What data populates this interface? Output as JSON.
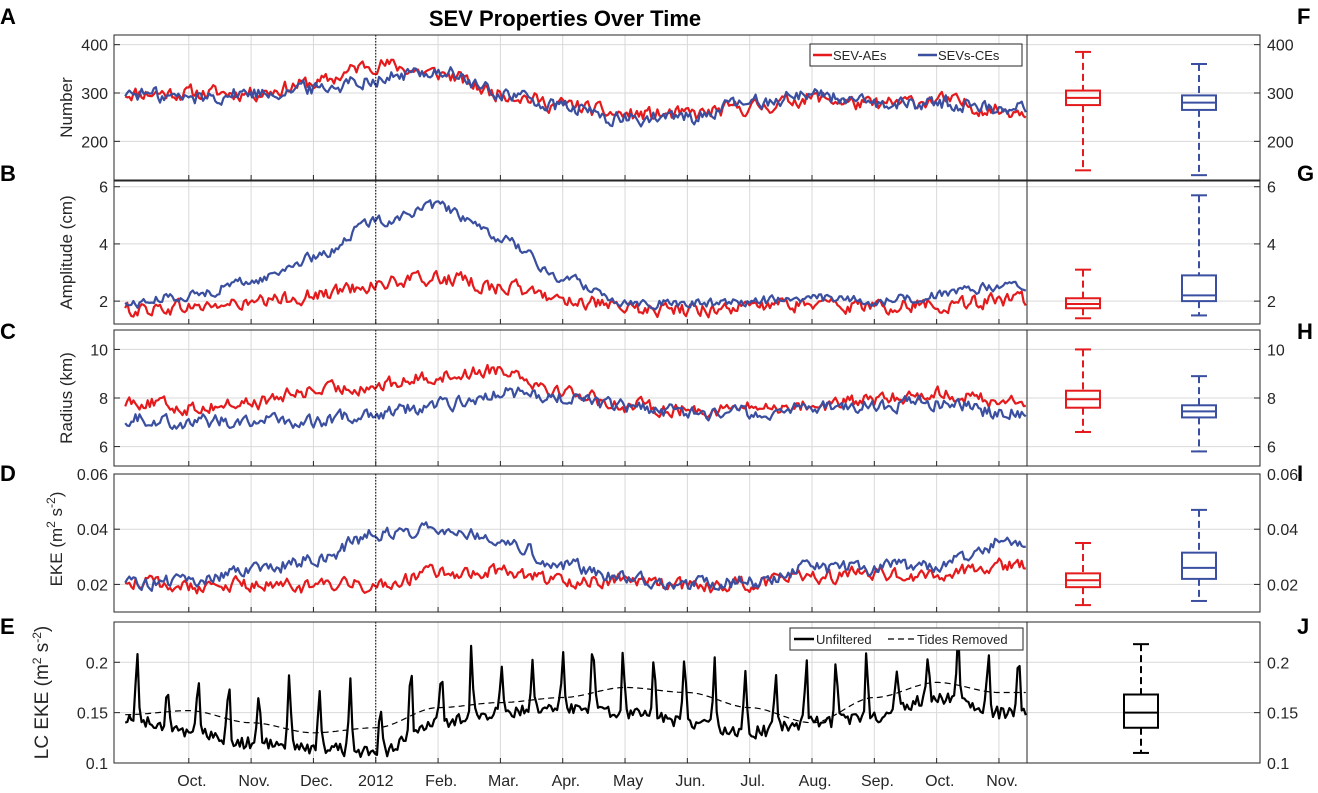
{
  "title": "SEV Properties Over Time",
  "x_month_labels": [
    "Oct.",
    "Nov.",
    "Dec.",
    "2012",
    "Feb.",
    "Mar.",
    "Apr.",
    "May",
    "Jun.",
    "Jul.",
    "Aug.",
    "Sep.",
    "Oct.",
    "Nov."
  ],
  "colors": {
    "ae": "#e41a1c",
    "ce": "#3a4fa0",
    "lc": "#000000",
    "grid": "#d9d9d9",
    "axis": "#262626"
  },
  "chart_data": [
    {
      "type": "line",
      "letter": "A",
      "ylabel": "Number",
      "ylim": [
        120,
        420
      ],
      "yticks": [
        200,
        300,
        400
      ],
      "x": [
        "2011-09",
        "2011-10",
        "2011-11",
        "2011-12",
        "2012-01",
        "2012-02",
        "2012-03",
        "2012-04",
        "2012-05",
        "2012-06",
        "2012-07",
        "2012-08",
        "2012-09",
        "2012-10",
        "2012-11"
      ],
      "series": [
        {
          "name": "SEV-AEs",
          "color": "#e41a1c",
          "values": [
            300,
            300,
            300,
            320,
            360,
            340,
            300,
            275,
            255,
            255,
            270,
            290,
            275,
            285,
            265
          ]
        },
        {
          "name": "SEVs-CEs",
          "color": "#3a4fa0",
          "values": [
            300,
            290,
            300,
            310,
            330,
            345,
            300,
            270,
            245,
            250,
            280,
            300,
            275,
            280,
            270
          ]
        }
      ],
      "legend": "top-right",
      "grid": true
    },
    {
      "type": "line",
      "letter": "B",
      "ylabel": "Amplitude (cm)",
      "ylim": [
        1.2,
        6.2
      ],
      "yticks": [
        2,
        4,
        6
      ],
      "x": [
        "2011-09",
        "2011-10",
        "2011-11",
        "2011-12",
        "2012-01",
        "2012-02",
        "2012-03",
        "2012-04",
        "2012-05",
        "2012-06",
        "2012-07",
        "2012-08",
        "2012-09",
        "2012-10",
        "2012-11"
      ],
      "series": [
        {
          "name": "SEV-AEs",
          "color": "#e41a1c",
          "values": [
            1.7,
            1.8,
            1.9,
            2.2,
            2.6,
            2.8,
            2.5,
            2.1,
            1.7,
            1.7,
            1.8,
            1.9,
            1.8,
            1.9,
            2.0
          ]
        },
        {
          "name": "SEVs-CEs",
          "color": "#3a4fa0",
          "values": [
            1.9,
            2.2,
            2.7,
            3.5,
            4.8,
            5.3,
            4.2,
            2.8,
            2.0,
            1.9,
            2.0,
            2.1,
            2.0,
            2.2,
            2.5
          ]
        }
      ],
      "grid": true
    },
    {
      "type": "line",
      "letter": "C",
      "ylabel": "Radius (km)",
      "ylim": [
        5.2,
        10.8
      ],
      "yticks": [
        6,
        8,
        10
      ],
      "x": [
        "2011-09",
        "2011-10",
        "2011-11",
        "2011-12",
        "2012-01",
        "2012-02",
        "2012-03",
        "2012-04",
        "2012-05",
        "2012-06",
        "2012-07",
        "2012-08",
        "2012-09",
        "2012-10",
        "2012-11"
      ],
      "series": [
        {
          "name": "SEV-AEs",
          "color": "#e41a1c",
          "values": [
            7.9,
            7.6,
            7.8,
            8.3,
            8.5,
            8.9,
            9.2,
            8.3,
            7.7,
            7.5,
            7.6,
            7.7,
            7.9,
            8.2,
            7.9
          ]
        },
        {
          "name": "SEVs-CEs",
          "color": "#3a4fa0",
          "values": [
            7.2,
            7.0,
            7.1,
            7.0,
            7.4,
            7.7,
            8.2,
            8.0,
            7.6,
            7.4,
            7.4,
            7.6,
            7.7,
            7.8,
            7.4
          ]
        }
      ],
      "grid": true
    },
    {
      "type": "line",
      "letter": "D",
      "ylabel_pre": "EKE (m",
      "ylabel_sup1": "2",
      "ylabel_mid": " s",
      "ylabel_sup2": "-2",
      "ylabel_post": ")",
      "ylim": [
        0.01,
        0.06
      ],
      "yticks": [
        0.02,
        0.04,
        0.06
      ],
      "x": [
        "2011-09",
        "2011-10",
        "2011-11",
        "2011-12",
        "2012-01",
        "2012-02",
        "2012-03",
        "2012-04",
        "2012-05",
        "2012-06",
        "2012-07",
        "2012-08",
        "2012-09",
        "2012-10",
        "2012-11"
      ],
      "series": [
        {
          "name": "SEV-AEs",
          "color": "#e41a1c",
          "values": [
            0.021,
            0.019,
            0.02,
            0.019,
            0.02,
            0.024,
            0.025,
            0.021,
            0.022,
            0.019,
            0.02,
            0.023,
            0.024,
            0.023,
            0.027
          ]
        },
        {
          "name": "SEVs-CEs",
          "color": "#3a4fa0",
          "values": [
            0.021,
            0.021,
            0.025,
            0.029,
            0.038,
            0.041,
            0.037,
            0.027,
            0.023,
            0.02,
            0.021,
            0.026,
            0.026,
            0.027,
            0.035
          ]
        }
      ],
      "grid": true
    },
    {
      "type": "line",
      "letter": "E",
      "ylabel_pre": "LC EKE (m",
      "ylabel_sup1": "2",
      "ylabel_mid": " s",
      "ylabel_sup2": "-2",
      "ylabel_post": ")",
      "ylim": [
        0.1,
        0.24
      ],
      "yticks": [
        0.1,
        0.15,
        0.2
      ],
      "x": [
        "2011-09",
        "2011-10",
        "2011-11",
        "2011-12",
        "2012-01",
        "2012-02",
        "2012-03",
        "2012-04",
        "2012-05",
        "2012-06",
        "2012-07",
        "2012-08",
        "2012-09",
        "2012-10",
        "2012-11"
      ],
      "series": [
        {
          "name": "Unfiltered",
          "color": "#000000",
          "style": "solid",
          "values": [
            0.165,
            0.15,
            0.14,
            0.135,
            0.13,
            0.16,
            0.17,
            0.175,
            0.17,
            0.16,
            0.15,
            0.16,
            0.165,
            0.185,
            0.17
          ]
        },
        {
          "name": "Tides Removed",
          "color": "#000000",
          "style": "dashed",
          "values": [
            0.148,
            0.152,
            0.14,
            0.13,
            0.135,
            0.155,
            0.16,
            0.165,
            0.175,
            0.17,
            0.155,
            0.14,
            0.165,
            0.18,
            0.17
          ]
        }
      ],
      "legend": "top-right",
      "grid": true
    }
  ],
  "box_panels": [
    {
      "letter": "F",
      "ylim": [
        120,
        420
      ],
      "yticks": [
        200,
        300,
        400
      ],
      "boxes": [
        {
          "name": "SEV-AEs",
          "color": "#e41a1c",
          "min": 140,
          "q1": 275,
          "median": 290,
          "q3": 305,
          "max": 385
        },
        {
          "name": "SEVs-CEs",
          "color": "#3a4fa0",
          "min": 130,
          "q1": 265,
          "median": 280,
          "q3": 295,
          "max": 360
        }
      ]
    },
    {
      "letter": "G",
      "ylim": [
        1.2,
        6.2
      ],
      "yticks": [
        2,
        4,
        6
      ],
      "boxes": [
        {
          "name": "SEV-AEs",
          "color": "#e41a1c",
          "min": 1.4,
          "q1": 1.75,
          "median": 1.9,
          "q3": 2.1,
          "max": 3.1
        },
        {
          "name": "SEVs-CEs",
          "color": "#3a4fa0",
          "min": 1.5,
          "q1": 2.0,
          "median": 2.2,
          "q3": 2.9,
          "max": 5.7
        }
      ]
    },
    {
      "letter": "H",
      "ylim": [
        5.2,
        10.8
      ],
      "yticks": [
        6,
        8,
        10
      ],
      "boxes": [
        {
          "name": "SEV-AEs",
          "color": "#e41a1c",
          "min": 6.6,
          "q1": 7.6,
          "median": 7.95,
          "q3": 8.3,
          "max": 10.0
        },
        {
          "name": "SEVs-CEs",
          "color": "#3a4fa0",
          "min": 5.8,
          "q1": 7.2,
          "median": 7.45,
          "q3": 7.7,
          "max": 8.9
        }
      ]
    },
    {
      "letter": "I",
      "ylim": [
        0.01,
        0.06
      ],
      "yticks": [
        0.02,
        0.04,
        0.06
      ],
      "boxes": [
        {
          "name": "SEV-AEs",
          "color": "#e41a1c",
          "min": 0.0125,
          "q1": 0.019,
          "median": 0.0215,
          "q3": 0.024,
          "max": 0.035
        },
        {
          "name": "SEVs-CEs",
          "color": "#3a4fa0",
          "min": 0.014,
          "q1": 0.022,
          "median": 0.026,
          "q3": 0.0315,
          "max": 0.047
        }
      ]
    },
    {
      "letter": "J",
      "ylim": [
        0.1,
        0.24
      ],
      "yticks": [
        0.1,
        0.15,
        0.2
      ],
      "boxes": [
        {
          "name": "LC EKE",
          "color": "#000000",
          "min": 0.11,
          "q1": 0.135,
          "median": 0.15,
          "q3": 0.168,
          "max": 0.218
        }
      ]
    }
  ]
}
